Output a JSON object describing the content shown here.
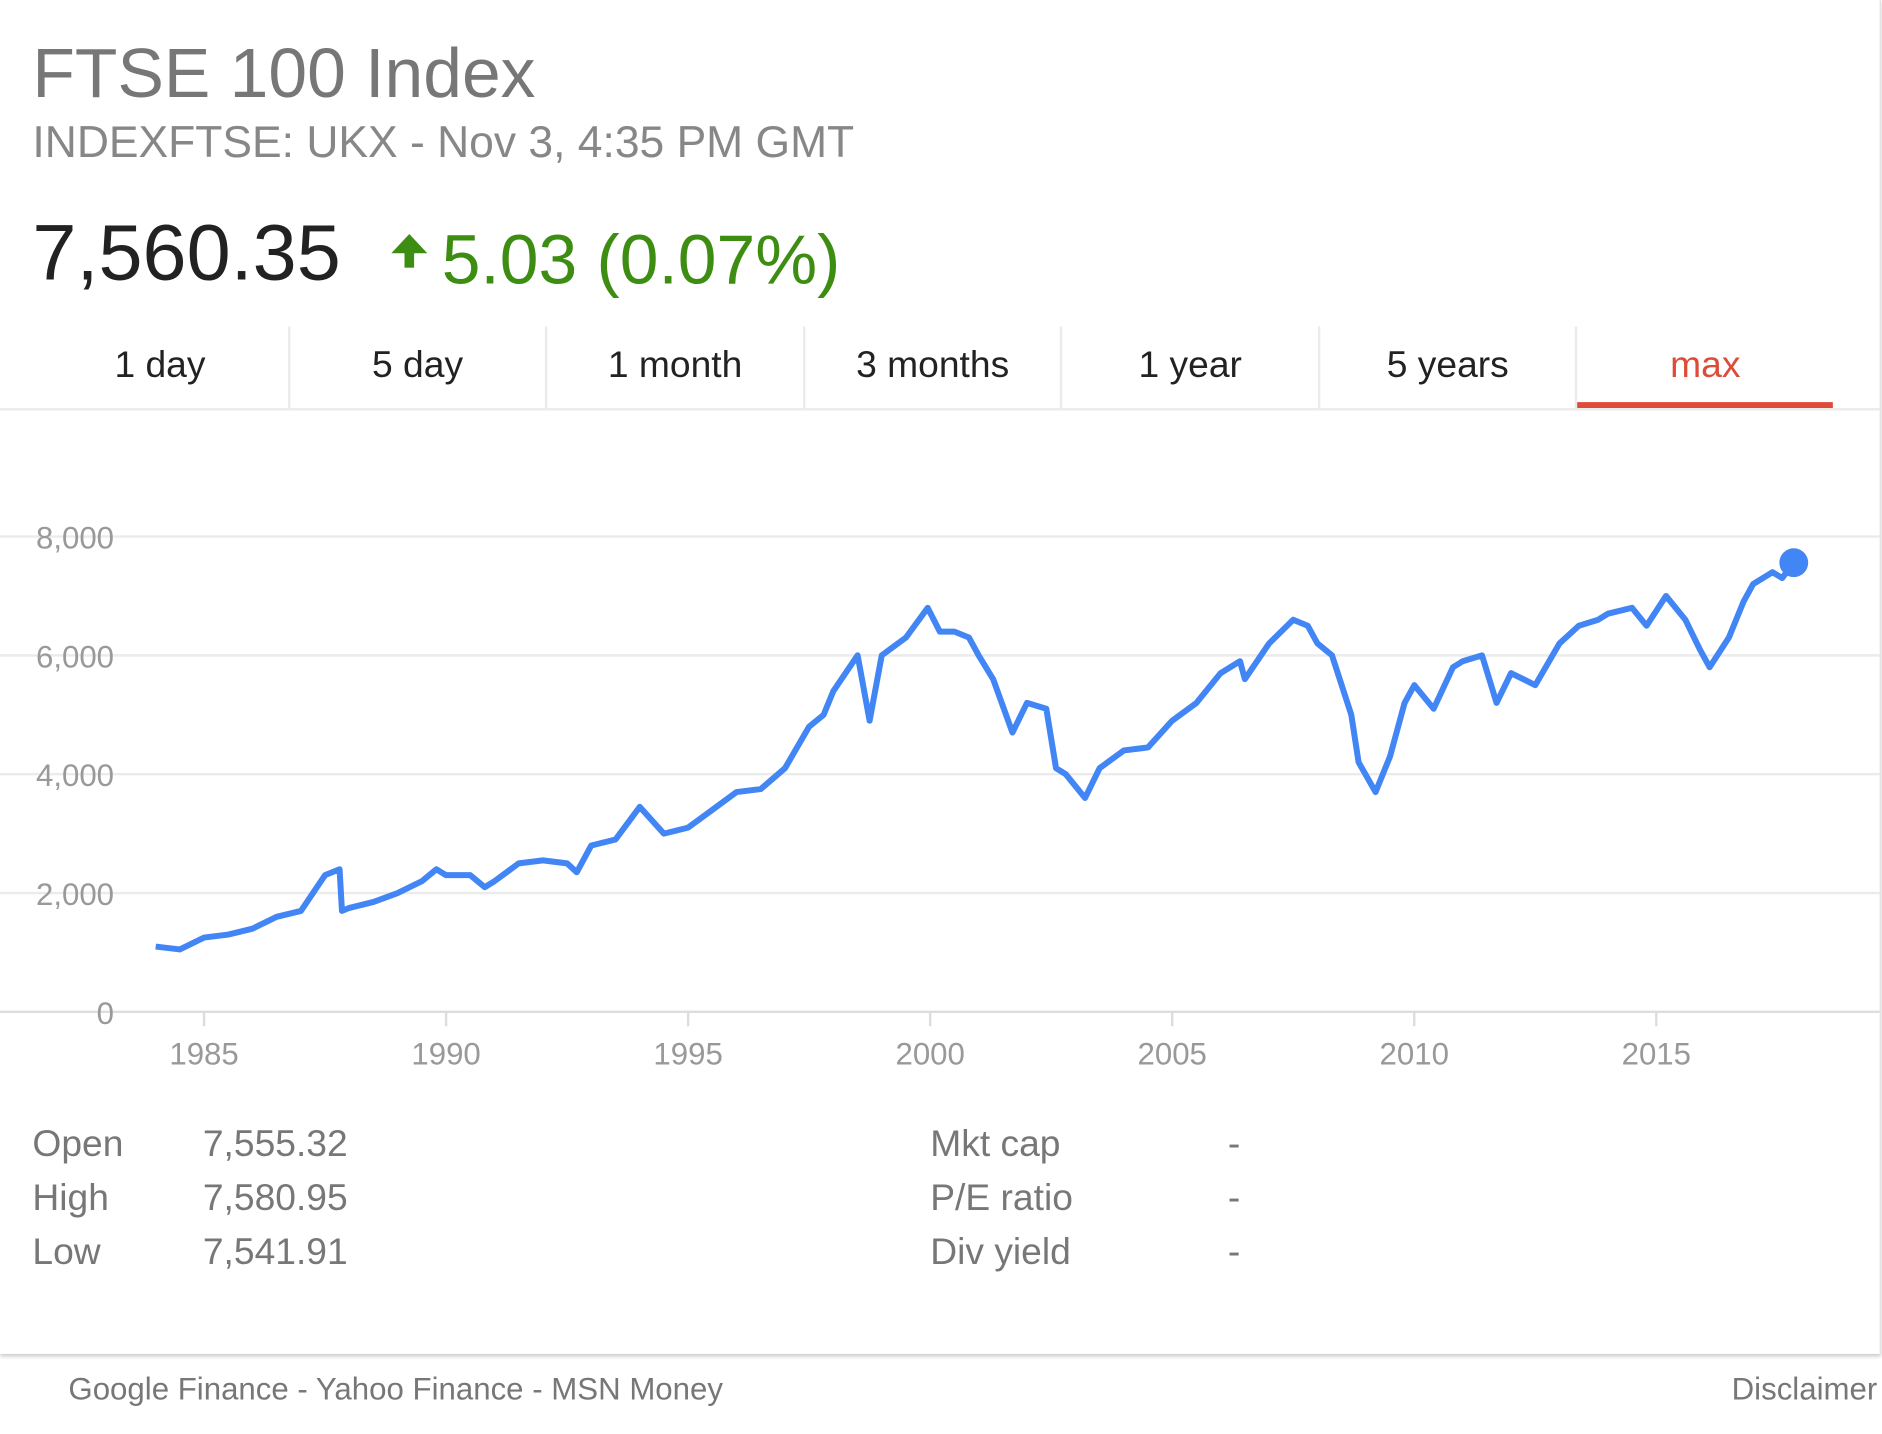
{
  "header": {
    "title": "FTSE 100 Index",
    "subtitle": "INDEXFTSE: UKX - Nov 3, 4:35 PM GMT",
    "price": "7,560.35",
    "change": "5.03 (0.07%)",
    "change_direction": "up",
    "change_color": "#3d8d12"
  },
  "tabs": [
    {
      "label": "1 day"
    },
    {
      "label": "5 day"
    },
    {
      "label": "1 month"
    },
    {
      "label": "3 months"
    },
    {
      "label": "1 year"
    },
    {
      "label": "5 years"
    },
    {
      "label": "max",
      "active": true
    }
  ],
  "accent_color": "#dd4b39",
  "stats_left": [
    {
      "label": "Open",
      "value": "7,555.32"
    },
    {
      "label": "High",
      "value": "7,580.95"
    },
    {
      "label": "Low",
      "value": "7,541.91"
    }
  ],
  "stats_right": [
    {
      "label": "Mkt cap",
      "value": "-"
    },
    {
      "label": "P/E ratio",
      "value": "-"
    },
    {
      "label": "Div yield",
      "value": "-"
    }
  ],
  "footer": {
    "links": [
      "Google Finance",
      "Yahoo Finance",
      "MSN Money"
    ],
    "separator": " - ",
    "disclaimer": "Disclaimer"
  },
  "chart_data": {
    "type": "line",
    "line_color": "#4285f4",
    "grid": true,
    "ylim": [
      0,
      8000
    ],
    "yticks": [
      "0",
      "2,000",
      "4,000",
      "6,000",
      "8,000"
    ],
    "ytick_values": [
      0,
      2000,
      4000,
      6000,
      8000
    ],
    "xticks": [
      "1985",
      "1990",
      "1995",
      "2000",
      "2005",
      "2010",
      "2015"
    ],
    "xtick_values": [
      1985,
      1990,
      1995,
      2000,
      2005,
      2010,
      2015
    ],
    "series": [
      {
        "x": [
          1984.0,
          1984.5,
          1985,
          1985.5,
          1986,
          1986.5,
          1987,
          1987.5,
          1987.8,
          1987.85,
          1988,
          1988.5,
          1989,
          1989.5,
          1989.8,
          1990,
          1990.5,
          1990.8,
          1991,
          1991.5,
          1992,
          1992.5,
          1992.7,
          1993,
          1993.5,
          1994,
          1994.5,
          1995,
          1995.5,
          1996,
          1996.5,
          1997,
          1997.5,
          1997.8,
          1998,
          1998.5,
          1998.75,
          1999,
          1999.5,
          1999.95,
          2000.2,
          2000.5,
          2000.8,
          2001,
          2001.3,
          2001.7,
          2002,
          2002.4,
          2002.6,
          2002.8,
          2003.2,
          2003.5,
          2004,
          2004.5,
          2005,
          2005.5,
          2006,
          2006.4,
          2006.5,
          2007,
          2007.5,
          2007.8,
          2008,
          2008.3,
          2008.7,
          2008.85,
          2009.2,
          2009.5,
          2009.8,
          2010,
          2010.4,
          2010.8,
          2011,
          2011.4,
          2011.7,
          2012,
          2012.5,
          2013,
          2013.4,
          2013.8,
          2014,
          2014.5,
          2014.8,
          2015.2,
          2015.6,
          2015.9,
          2016.1,
          2016.5,
          2016.8,
          2017,
          2017.4,
          2017.6,
          2017.84
        ],
        "y": [
          1100,
          1050,
          1250,
          1300,
          1400,
          1600,
          1700,
          2300,
          2400,
          1700,
          1750,
          1850,
          2000,
          2200,
          2400,
          2300,
          2300,
          2100,
          2200,
          2500,
          2550,
          2500,
          2350,
          2800,
          2900,
          3450,
          3000,
          3100,
          3400,
          3700,
          3750,
          4100,
          4800,
          5000,
          5400,
          6000,
          4900,
          6000,
          6300,
          6800,
          6400,
          6400,
          6300,
          6000,
          5600,
          4700,
          5200,
          5100,
          4100,
          4000,
          3600,
          4100,
          4400,
          4450,
          4900,
          5200,
          5700,
          5900,
          5600,
          6200,
          6600,
          6500,
          6200,
          6000,
          5000,
          4200,
          3700,
          4300,
          5200,
          5500,
          5100,
          5800,
          5900,
          6000,
          5200,
          5700,
          5500,
          6200,
          6500,
          6600,
          6700,
          6800,
          6500,
          7000,
          6600,
          6100,
          5800,
          6300,
          6900,
          7200,
          7400,
          7300,
          7560
        ]
      }
    ]
  }
}
